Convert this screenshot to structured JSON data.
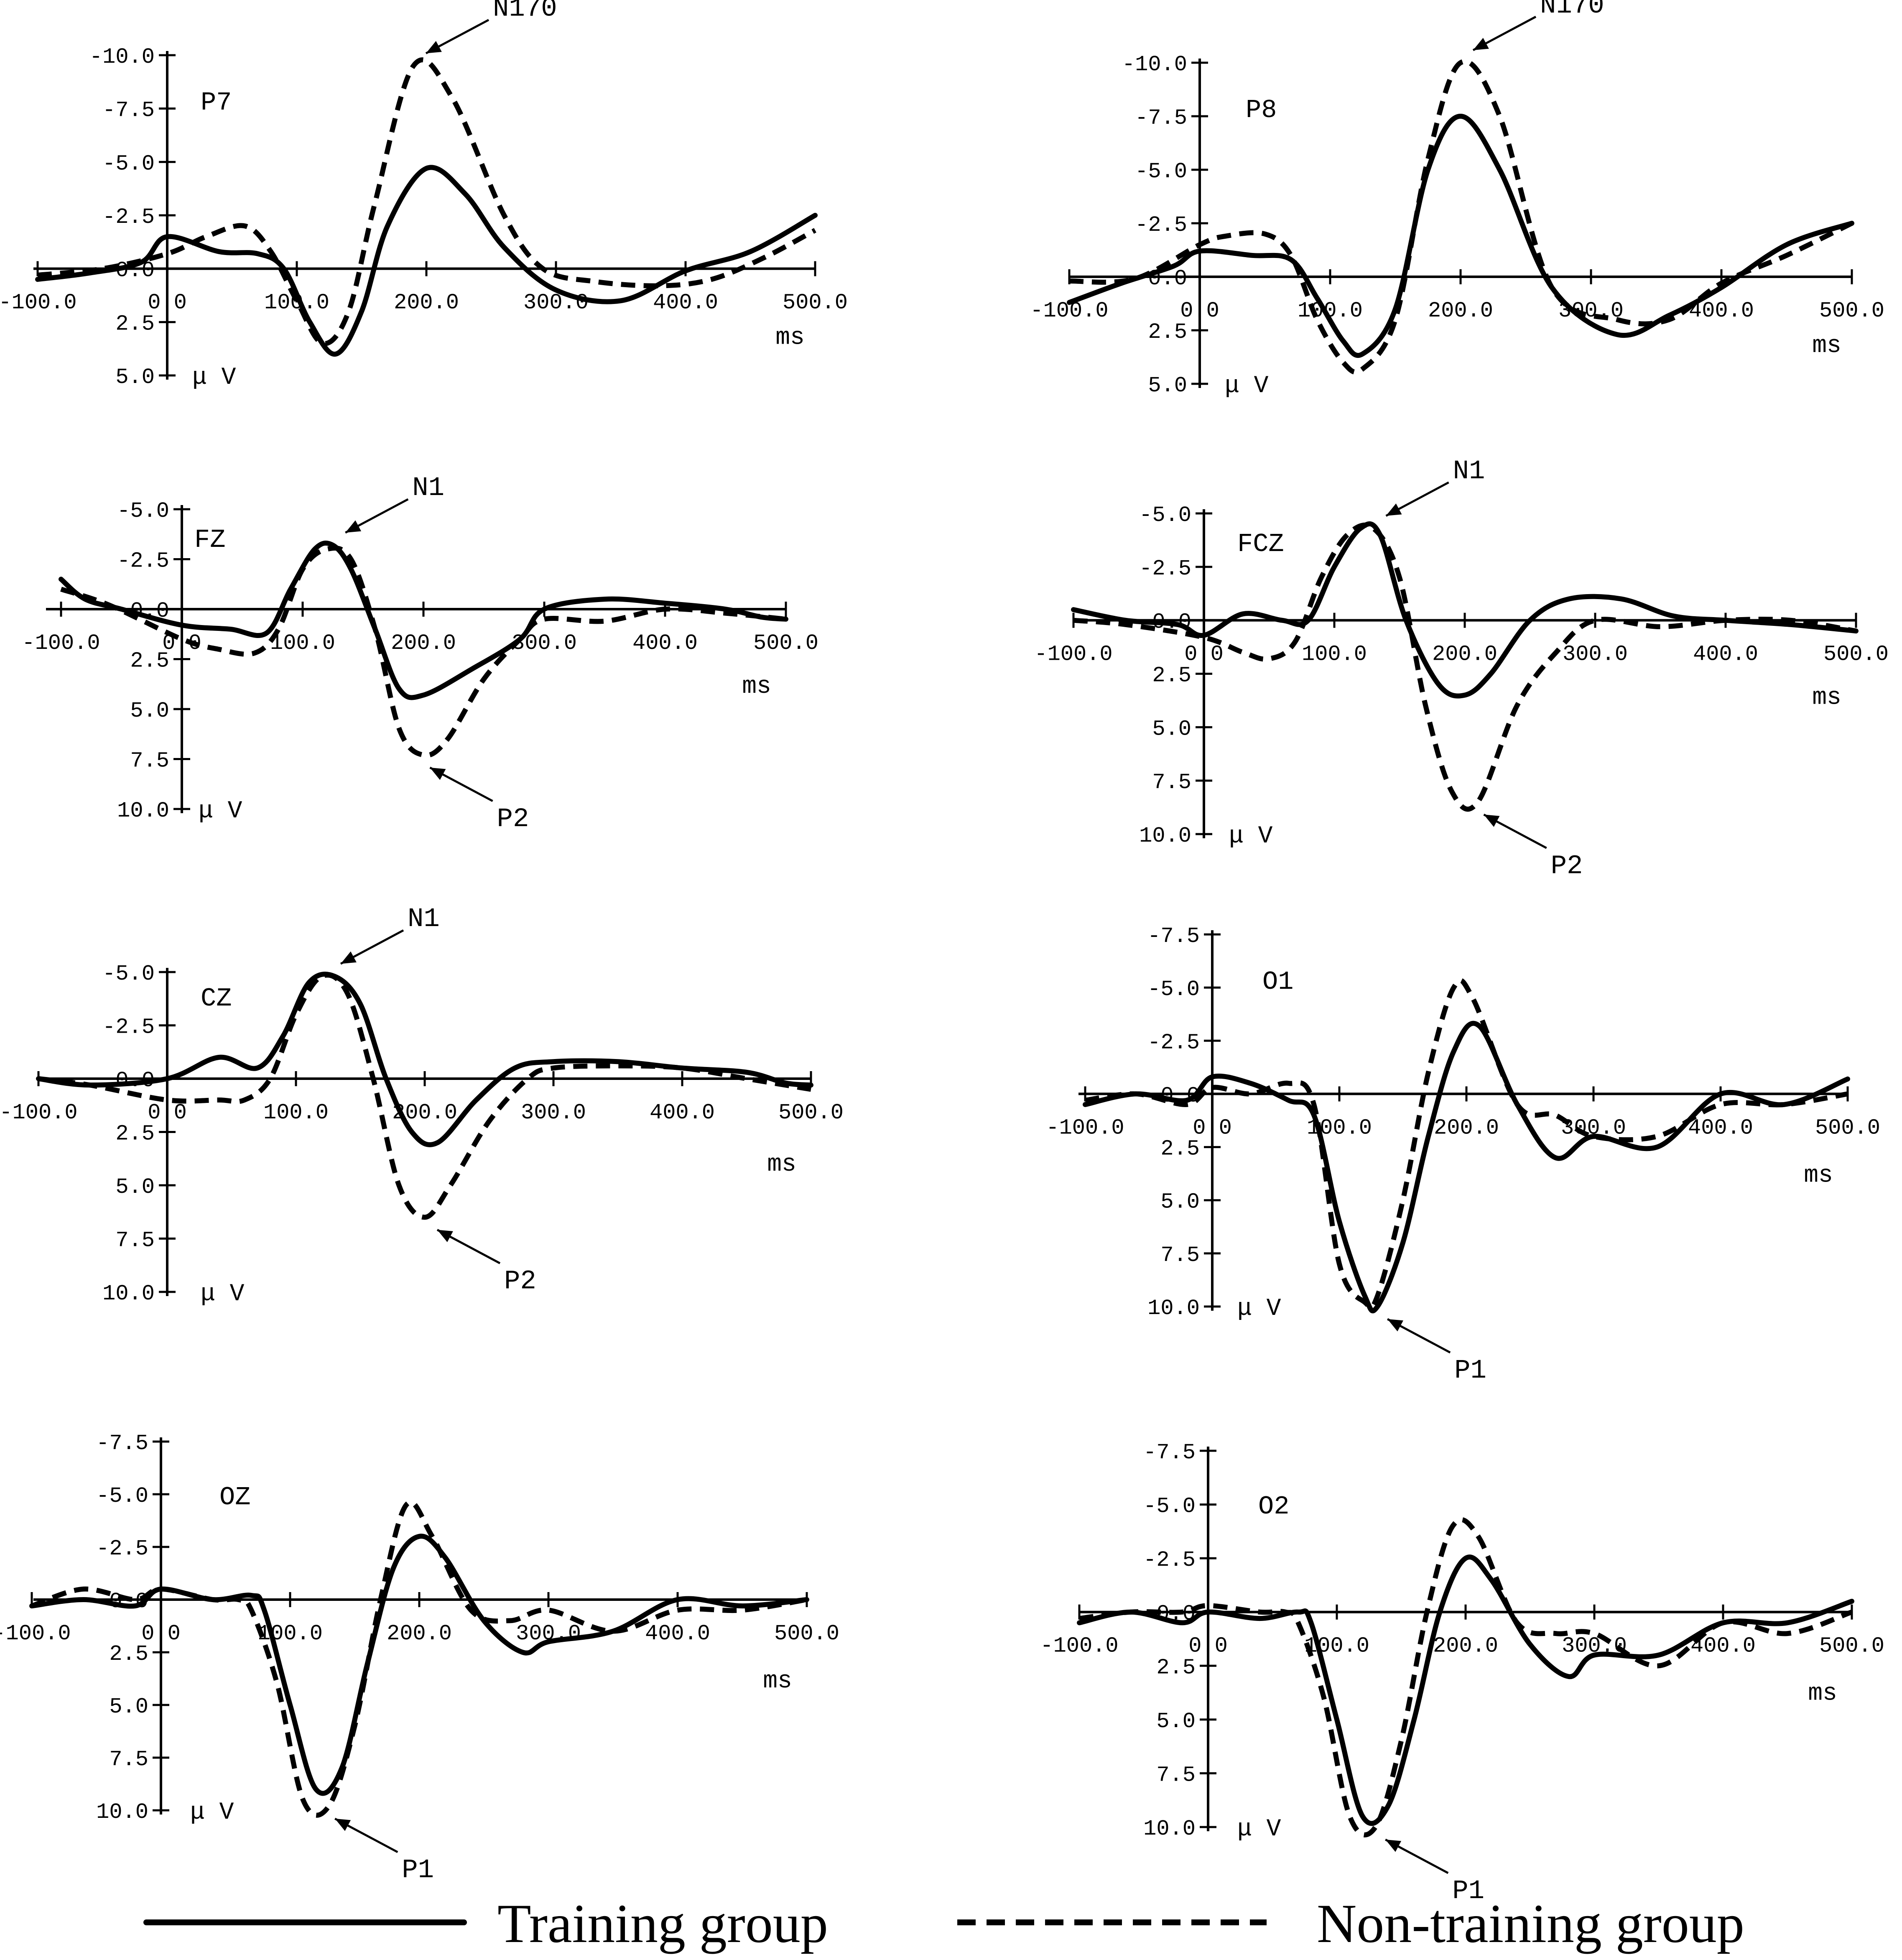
{
  "chart_data": [
    {
      "type": "line",
      "channel": "P7",
      "xlim": [
        -100,
        500
      ],
      "ylim": [
        -10,
        5
      ],
      "y_inverted": true,
      "y_ticks": [
        "-10.0",
        "-7.5",
        "-5.0",
        "-2.5",
        "0.0",
        "2.5",
        "5.0"
      ],
      "x_ticks": [
        "-100.0",
        "0.0",
        "100.0",
        "200.0",
        "300.0",
        "400.0",
        "500.0"
      ],
      "xlabel": "ms",
      "ylabel": "μ V",
      "series": [
        {
          "name": "Training group",
          "style": "solid",
          "x": [
            -100,
            -60,
            -20,
            0,
            40,
            70,
            90,
            110,
            130,
            150,
            170,
            200,
            230,
            260,
            300,
            350,
            400,
            450,
            500
          ],
          "y": [
            0.5,
            0.2,
            -0.3,
            -1.5,
            -0.8,
            -0.7,
            0.0,
            2.5,
            4.0,
            2.0,
            -2.0,
            -4.7,
            -3.5,
            -1.0,
            1.0,
            1.5,
            0.1,
            -0.8,
            -2.5
          ]
        },
        {
          "name": "Non-training group",
          "style": "dashed",
          "x": [
            -100,
            -50,
            0,
            30,
            60,
            80,
            100,
            120,
            140,
            160,
            190,
            220,
            260,
            290,
            330,
            380,
            420,
            460,
            500
          ],
          "y": [
            0.3,
            0.0,
            -0.7,
            -1.5,
            -2.0,
            -0.8,
            1.5,
            3.5,
            2.0,
            -3.0,
            -9.5,
            -8.0,
            -2.5,
            0.0,
            0.6,
            0.8,
            0.5,
            -0.5,
            -1.8
          ]
        }
      ],
      "annotations": [
        {
          "text": "N170",
          "x": 190,
          "y": -9.5
        }
      ]
    },
    {
      "type": "line",
      "channel": "P8",
      "xlim": [
        -100,
        500
      ],
      "ylim": [
        -10,
        5
      ],
      "y_inverted": true,
      "y_ticks": [
        "-10.0",
        "-7.5",
        "-5.0",
        "-2.5",
        "0.0",
        "2.5",
        "5.0"
      ],
      "x_ticks": [
        "-100.0",
        "0.0",
        "100.0",
        "200.0",
        "300.0",
        "400.0",
        "500.0"
      ],
      "xlabel": "ms",
      "ylabel": "μ V",
      "series": [
        {
          "name": "Training group",
          "style": "solid",
          "x": [
            -100,
            -60,
            -20,
            0,
            40,
            70,
            90,
            110,
            125,
            150,
            175,
            200,
            230,
            270,
            320,
            360,
            400,
            450,
            500
          ],
          "y": [
            1.2,
            0.3,
            -0.5,
            -1.2,
            -1.0,
            -0.8,
            1.0,
            3.0,
            3.6,
            1.5,
            -5.0,
            -7.5,
            -5.0,
            0.5,
            2.7,
            1.8,
            0.5,
            -1.5,
            -2.5
          ]
        },
        {
          "name": "Non-training group",
          "style": "dashed",
          "x": [
            -100,
            -50,
            0,
            20,
            50,
            70,
            90,
            110,
            125,
            150,
            175,
            200,
            230,
            270,
            320,
            360,
            400,
            450,
            500
          ],
          "y": [
            0.2,
            0.1,
            -1.5,
            -1.9,
            -2.0,
            -1.0,
            2.0,
            4.0,
            4.3,
            2.0,
            -5.5,
            -10.0,
            -7.5,
            0.5,
            2.0,
            2.0,
            0.3,
            -1.0,
            -2.5
          ]
        }
      ],
      "annotations": [
        {
          "text": "N170",
          "x": 200,
          "y": -10.0
        }
      ]
    },
    {
      "type": "line",
      "channel": "FZ",
      "xlim": [
        -100,
        500
      ],
      "ylim": [
        -5,
        10
      ],
      "y_inverted": true,
      "y_ticks": [
        "-5.0",
        "-2.5",
        "0.0",
        "2.5",
        "5.0",
        "7.5",
        "10.0"
      ],
      "x_ticks": [
        "-100.0",
        "0.0",
        "100.0",
        "200.0",
        "300.0",
        "400.0",
        "500.0"
      ],
      "xlabel": "ms",
      "ylabel": "μ V",
      "series": [
        {
          "name": "Training group",
          "style": "solid",
          "x": [
            -100,
            -80,
            -50,
            0,
            40,
            70,
            90,
            110,
            125,
            140,
            160,
            180,
            200,
            240,
            280,
            300,
            350,
            400,
            450,
            480,
            500
          ],
          "y": [
            -1.5,
            -0.5,
            0.0,
            0.8,
            1.0,
            1.2,
            -1.0,
            -3.0,
            -3.2,
            -2.0,
            1.0,
            4.0,
            4.3,
            3.0,
            1.5,
            0.0,
            -0.5,
            -0.3,
            0.0,
            0.4,
            0.5
          ]
        },
        {
          "name": "Non-training group",
          "style": "dashed",
          "x": [
            -100,
            -60,
            0,
            30,
            60,
            80,
            100,
            120,
            140,
            160,
            180,
            200,
            220,
            250,
            280,
            300,
            350,
            400,
            450,
            500
          ],
          "y": [
            -1.0,
            -0.2,
            1.5,
            2.0,
            2.2,
            1.0,
            -2.0,
            -3.0,
            -2.5,
            1.0,
            6.0,
            7.3,
            6.5,
            3.5,
            1.5,
            0.5,
            0.6,
            0.0,
            0.2,
            0.5
          ]
        }
      ],
      "annotations": [
        {
          "text": "N1",
          "x": 125,
          "y": -3.2
        },
        {
          "text": "P2",
          "x": 195,
          "y": 7.3
        }
      ]
    },
    {
      "type": "line",
      "channel": "FCZ",
      "xlim": [
        -100,
        500
      ],
      "ylim": [
        -5,
        10
      ],
      "y_inverted": true,
      "y_ticks": [
        "-5.0",
        "-2.5",
        "0.0",
        "2.5",
        "5.0",
        "7.5",
        "10.0"
      ],
      "x_ticks": [
        "-100.0",
        "0.0",
        "100.0",
        "200.0",
        "300.0",
        "400.0",
        "500.0"
      ],
      "xlabel": "ms",
      "ylabel": "μ V",
      "series": [
        {
          "name": "Training group",
          "style": "solid",
          "x": [
            -100,
            -60,
            -20,
            0,
            30,
            60,
            80,
            100,
            120,
            135,
            155,
            180,
            200,
            220,
            250,
            280,
            320,
            360,
            400,
            450,
            500
          ],
          "y": [
            -0.5,
            0.0,
            0.2,
            0.7,
            -0.3,
            0.0,
            0.0,
            -2.5,
            -4.3,
            -4.0,
            0.0,
            3.0,
            3.5,
            2.5,
            0.0,
            -1.0,
            -1.0,
            -0.2,
            0.0,
            0.2,
            0.5
          ]
        },
        {
          "name": "Non-training group",
          "style": "dashed",
          "x": [
            -100,
            -60,
            0,
            30,
            50,
            70,
            90,
            110,
            130,
            150,
            170,
            190,
            210,
            240,
            270,
            300,
            350,
            400,
            450,
            500
          ],
          "y": [
            0.0,
            0.2,
            0.8,
            1.5,
            1.8,
            1.0,
            -2.0,
            -4.0,
            -4.3,
            -2.0,
            4.0,
            8.0,
            8.5,
            4.0,
            1.5,
            0.0,
            0.3,
            0.0,
            0.0,
            0.5
          ]
        }
      ],
      "annotations": [
        {
          "text": "N1",
          "x": 130,
          "y": -4.3
        },
        {
          "text": "P2",
          "x": 205,
          "y": 8.5
        }
      ]
    },
    {
      "type": "line",
      "channel": "CZ",
      "xlim": [
        -100,
        500
      ],
      "ylim": [
        -5,
        10
      ],
      "y_inverted": true,
      "y_ticks": [
        "-5.0",
        "-2.5",
        "0.0",
        "2.5",
        "5.0",
        "7.5",
        "10.0"
      ],
      "x_ticks": [
        "-100.0",
        "0.0",
        "100.0",
        "200.0",
        "300.0",
        "400.0",
        "500.0"
      ],
      "xlabel": "ms",
      "ylabel": "μ V",
      "series": [
        {
          "name": "Training group",
          "style": "solid",
          "x": [
            -100,
            -60,
            0,
            40,
            70,
            90,
            110,
            130,
            150,
            170,
            190,
            210,
            240,
            270,
            300,
            350,
            400,
            450,
            480,
            500
          ],
          "y": [
            0.0,
            0.3,
            0.0,
            -1.0,
            -0.5,
            -2.0,
            -4.5,
            -4.8,
            -3.5,
            0.0,
            2.5,
            3.0,
            1.0,
            -0.5,
            -0.8,
            -0.8,
            -0.5,
            -0.3,
            0.2,
            0.3
          ]
        },
        {
          "name": "Non-training group",
          "style": "dashed",
          "x": [
            -100,
            -60,
            0,
            40,
            60,
            80,
            100,
            120,
            140,
            160,
            180,
            200,
            220,
            250,
            280,
            300,
            350,
            400,
            450,
            500
          ],
          "y": [
            0.0,
            0.3,
            1.0,
            1.0,
            1.0,
            0.0,
            -3.0,
            -4.8,
            -4.0,
            0.0,
            5.0,
            6.5,
            5.0,
            2.0,
            0.0,
            -0.5,
            -0.6,
            -0.5,
            0.0,
            0.5
          ]
        }
      ],
      "annotations": [
        {
          "text": "N1",
          "x": 125,
          "y": -4.8
        },
        {
          "text": "P2",
          "x": 200,
          "y": 6.5
        }
      ]
    },
    {
      "type": "line",
      "channel": "O1",
      "xlim": [
        -100,
        500
      ],
      "ylim": [
        -7.5,
        10
      ],
      "y_inverted": true,
      "y_ticks": [
        "-7.5",
        "-5.0",
        "-2.5",
        "0.0",
        "2.5",
        "5.0",
        "7.5",
        "10.0"
      ],
      "x_ticks": [
        "-100.0",
        "0.0",
        "100.0",
        "200.0",
        "300.0",
        "400.0",
        "500.0"
      ],
      "xlabel": "ms",
      "ylabel": "μ V",
      "series": [
        {
          "name": "Training group",
          "style": "solid",
          "x": [
            -100,
            -60,
            -20,
            0,
            30,
            60,
            80,
            100,
            120,
            130,
            150,
            170,
            190,
            210,
            240,
            270,
            300,
            350,
            400,
            450,
            500
          ],
          "y": [
            0.5,
            0.0,
            0.3,
            -0.8,
            -0.5,
            0.3,
            1.0,
            6.0,
            9.5,
            10.0,
            7.0,
            2.0,
            -2.0,
            -3.2,
            0.5,
            3.0,
            2.0,
            2.5,
            0.0,
            0.5,
            -0.7
          ]
        },
        {
          "name": "Non-training group",
          "style": "dashed",
          "x": [
            -100,
            -60,
            -20,
            0,
            30,
            60,
            80,
            100,
            120,
            130,
            150,
            170,
            190,
            205,
            240,
            270,
            300,
            350,
            400,
            450,
            500
          ],
          "y": [
            0.3,
            0.0,
            0.5,
            -0.3,
            0.0,
            -0.5,
            0.5,
            8.0,
            9.8,
            9.5,
            5.0,
            -1.0,
            -5.0,
            -4.5,
            0.5,
            1.0,
            2.0,
            2.0,
            0.5,
            0.5,
            0.0
          ]
        }
      ],
      "annotations": [
        {
          "text": "P1",
          "x": 128,
          "y": 10.0
        }
      ]
    },
    {
      "type": "line",
      "channel": "OZ",
      "xlim": [
        -100,
        500
      ],
      "ylim": [
        -7.5,
        10
      ],
      "y_inverted": true,
      "y_ticks": [
        "-7.5",
        "-5.0",
        "-2.5",
        "0.0",
        "2.5",
        "5.0",
        "7.5",
        "10.0"
      ],
      "x_ticks": [
        "-100.0",
        "0.0",
        "100.0",
        "200.0",
        "300.0",
        "400.0",
        "500.0"
      ],
      "xlabel": "ms",
      "ylabel": "μ V",
      "series": [
        {
          "name": "Training group",
          "style": "solid",
          "x": [
            -100,
            -60,
            -20,
            0,
            40,
            70,
            80,
            100,
            120,
            140,
            160,
            180,
            200,
            220,
            250,
            280,
            300,
            350,
            400,
            450,
            500
          ],
          "y": [
            0.3,
            0.0,
            0.3,
            -0.5,
            0.0,
            -0.2,
            0.5,
            5.0,
            9.0,
            8.0,
            3.0,
            -1.5,
            -3.0,
            -2.0,
            1.0,
            2.5,
            2.0,
            1.5,
            0.0,
            0.3,
            0.0
          ]
        },
        {
          "name": "Non-training group",
          "style": "dashed",
          "x": [
            -100,
            -60,
            -20,
            0,
            40,
            60,
            70,
            90,
            110,
            130,
            150,
            170,
            190,
            210,
            240,
            270,
            300,
            350,
            400,
            450,
            500
          ],
          "y": [
            0.3,
            -0.5,
            0.0,
            -0.5,
            0.0,
            0.0,
            0.5,
            4.0,
            9.5,
            9.8,
            6.0,
            0.0,
            -4.5,
            -3.0,
            0.5,
            1.0,
            0.5,
            1.5,
            0.5,
            0.5,
            0.0
          ]
        }
      ],
      "annotations": [
        {
          "text": "P1",
          "x": 125,
          "y": 9.8
        }
      ]
    },
    {
      "type": "line",
      "channel": "O2",
      "xlim": [
        -100,
        500
      ],
      "ylim": [
        -7.5,
        10
      ],
      "y_inverted": true,
      "y_ticks": [
        "-7.5",
        "-5.0",
        "-2.5",
        "0.0",
        "2.5",
        "5.0",
        "7.5",
        "10.0"
      ],
      "x_ticks": [
        "-100.0",
        "0.0",
        "100.0",
        "200.0",
        "300.0",
        "400.0",
        "500.0"
      ],
      "xlabel": "ms",
      "ylabel": "μ V",
      "series": [
        {
          "name": "Training group",
          "style": "solid",
          "x": [
            -100,
            -60,
            -20,
            0,
            40,
            70,
            80,
            100,
            120,
            140,
            160,
            180,
            200,
            220,
            250,
            280,
            300,
            350,
            400,
            450,
            500
          ],
          "y": [
            0.5,
            0.0,
            0.5,
            0.0,
            0.3,
            0.0,
            0.5,
            5.0,
            9.5,
            9.0,
            5.0,
            0.0,
            -2.5,
            -1.5,
            1.5,
            3.0,
            2.0,
            2.0,
            0.5,
            0.5,
            -0.5
          ]
        },
        {
          "name": "Non-training group",
          "style": "dashed",
          "x": [
            -100,
            -60,
            -20,
            0,
            40,
            60,
            70,
            90,
            110,
            130,
            150,
            170,
            190,
            210,
            240,
            270,
            300,
            350,
            400,
            450,
            500
          ],
          "y": [
            0.3,
            0.0,
            0.0,
            -0.3,
            0.0,
            0.0,
            0.5,
            4.0,
            9.5,
            10.0,
            6.0,
            0.0,
            -4.0,
            -3.5,
            0.5,
            1.0,
            1.0,
            2.5,
            0.5,
            1.0,
            0.0
          ]
        }
      ],
      "annotations": [
        {
          "text": "P1",
          "x": 128,
          "y": 10.0
        }
      ]
    }
  ],
  "legend": {
    "placement": "bottom",
    "entries": [
      {
        "label": "Training group",
        "style": "solid"
      },
      {
        "label": "Non-training group",
        "style": "dashed"
      }
    ]
  }
}
